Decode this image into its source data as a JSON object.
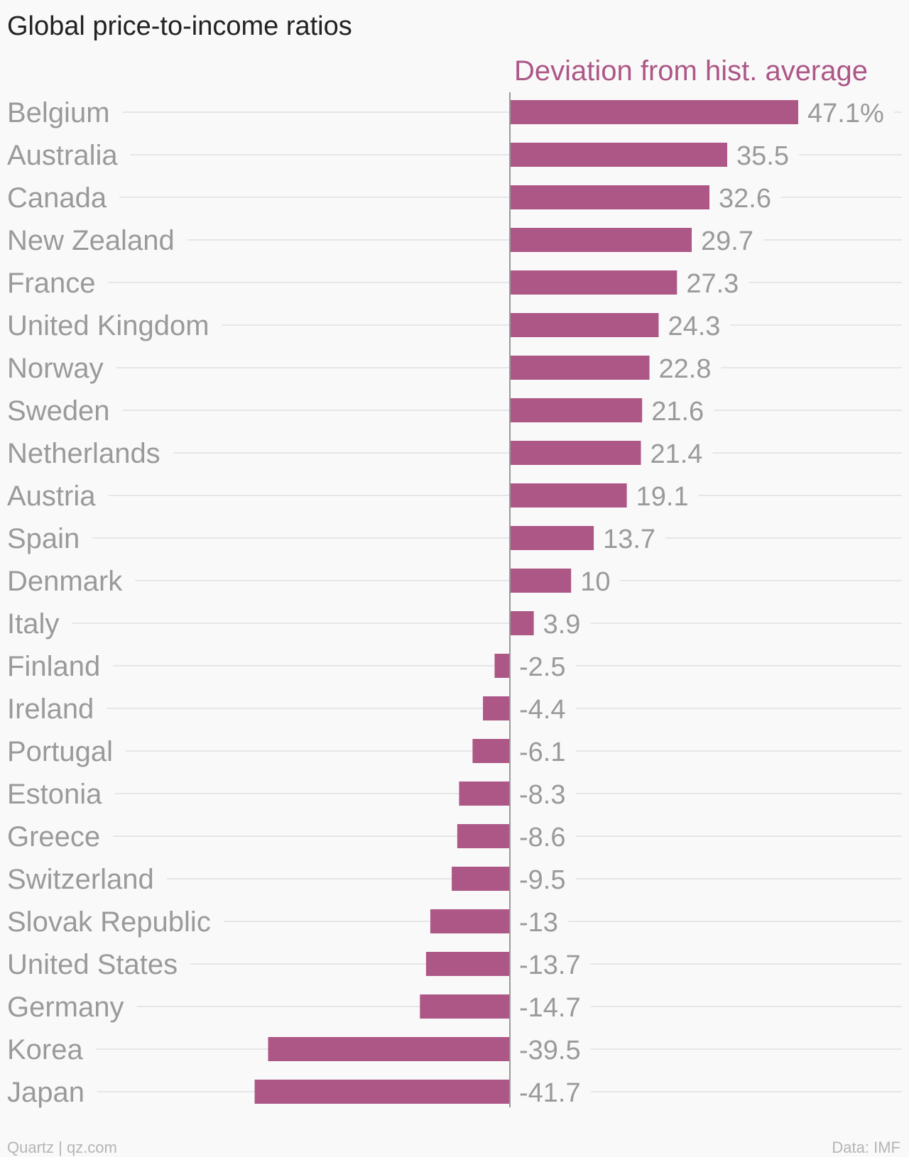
{
  "chart_data": {
    "type": "bar",
    "orientation": "horizontal",
    "title": "Global price-to-income ratios",
    "series": [
      {
        "name": "Deviation from hist. average",
        "color": "#ad5787",
        "values": [
          47.1,
          35.5,
          32.6,
          29.7,
          27.3,
          24.3,
          22.8,
          21.6,
          21.4,
          19.1,
          13.7,
          10,
          3.9,
          -2.5,
          -4.4,
          -6.1,
          -8.3,
          -8.6,
          -9.5,
          -13,
          -13.7,
          -14.7,
          -39.5,
          -41.7
        ]
      }
    ],
    "categories": [
      "Belgium",
      "Australia",
      "Canada",
      "New Zealand",
      "France",
      "United Kingdom",
      "Norway",
      "Sweden",
      "Netherlands",
      "Austria",
      "Spain",
      "Denmark",
      "Italy",
      "Finland",
      "Ireland",
      "Portugal",
      "Estonia",
      "Greece",
      "Switzerland",
      "Slovak Republic",
      "United States",
      "Germany",
      "Korea",
      "Japan"
    ],
    "value_labels": [
      "47.1%",
      "35.5",
      "32.6",
      "29.7",
      "27.3",
      "24.3",
      "22.8",
      "21.6",
      "21.4",
      "19.1",
      "13.7",
      "10",
      "3.9",
      "-2.5",
      "-4.4",
      "-6.1",
      "-8.3",
      "-8.6",
      "-9.5",
      "-13",
      "-13.7",
      "-14.7",
      "-39.5",
      "-41.7"
    ],
    "grid": true
  },
  "footer": {
    "source_left": "Quartz | qz.com",
    "source_right": "Data: IMF"
  },
  "colors": {
    "bar": "#ad5787",
    "label_text": "#9a9a9a",
    "title_text": "#222222",
    "background": "#f9f9f9"
  }
}
